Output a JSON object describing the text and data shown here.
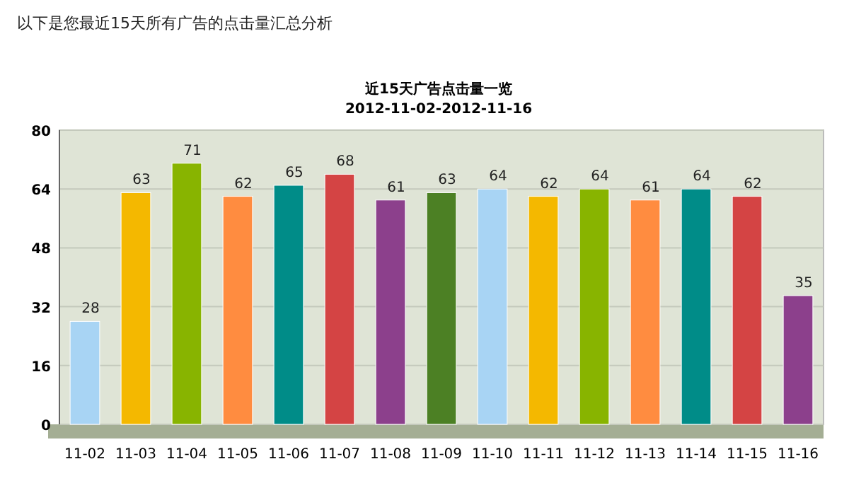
{
  "chart_data": {
    "type": "bar",
    "title": "近15天广告点击量一览",
    "subtitle": "2012-11-02-2012-11-16",
    "annotations": [
      "以下是您最近15天所有广告的点击量汇总分析"
    ],
    "categories": [
      "11-02",
      "11-03",
      "11-04",
      "11-05",
      "11-06",
      "11-07",
      "11-08",
      "11-09",
      "11-10",
      "11-11",
      "11-12",
      "11-13",
      "11-14",
      "11-15",
      "11-16"
    ],
    "values": [
      28,
      63,
      71,
      62,
      65,
      68,
      61,
      63,
      64,
      62,
      64,
      61,
      64,
      62,
      35
    ],
    "colors": [
      "#a8d4f4",
      "#f4b800",
      "#88b400",
      "#ff8c40",
      "#008c88",
      "#d44444",
      "#8c408c",
      "#4c8024",
      "#a8d4f4",
      "#f4b800",
      "#88b400",
      "#ff8c40",
      "#008c88",
      "#d44444",
      "#8c408c"
    ],
    "ylim": [
      0,
      80
    ],
    "yticks": [
      0,
      16,
      32,
      48,
      64,
      80
    ],
    "grid": "y",
    "data_labels": true
  }
}
